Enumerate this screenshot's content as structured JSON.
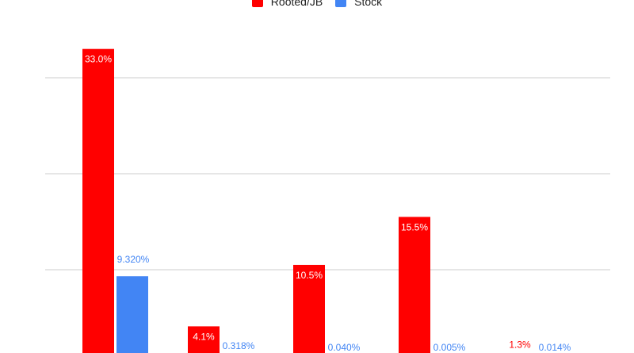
{
  "colors": {
    "rooted": "#ff0000",
    "stock": "#4285f4",
    "grid": "#cccccc"
  },
  "legend": [
    {
      "label": "Rooted/JB",
      "color": "#ff0000"
    },
    {
      "label": "Stock",
      "color": "#4285f4"
    }
  ],
  "chart_data": {
    "type": "bar",
    "title": "",
    "xlabel": "",
    "ylabel": "",
    "categories": [
      "",
      "",
      "",
      "",
      ""
    ],
    "ylim": [
      0,
      35
    ],
    "grid": true,
    "legend_position": "top",
    "series": [
      {
        "name": "Rooted/JB",
        "color": "#ff0000",
        "values": [
          33.0,
          4.1,
          10.5,
          15.5,
          1.3
        ],
        "labels": [
          "33.0%",
          "4.1%",
          "10.5%",
          "15.5%",
          "1.3%"
        ]
      },
      {
        "name": "Stock",
        "color": "#4285f4",
        "values": [
          9.32,
          0.318,
          0.04,
          0.005,
          0.014
        ],
        "labels": [
          "9.320%",
          "0.318%",
          "0.040%",
          "0.005%",
          "0.014%"
        ]
      }
    ]
  }
}
